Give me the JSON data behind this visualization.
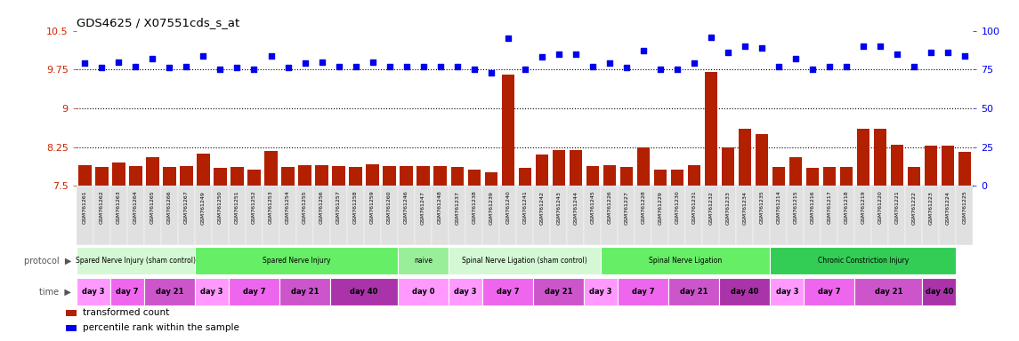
{
  "title": "GDS4625 / X07551cds_s_at",
  "samples": [
    "GSM761261",
    "GSM761262",
    "GSM761263",
    "GSM761264",
    "GSM761265",
    "GSM761266",
    "GSM761267",
    "GSM761249",
    "GSM761250",
    "GSM761251",
    "GSM761252",
    "GSM761253",
    "GSM761254",
    "GSM761255",
    "GSM761256",
    "GSM761257",
    "GSM761258",
    "GSM761259",
    "GSM761260",
    "GSM761246",
    "GSM761247",
    "GSM761248",
    "GSM761237",
    "GSM761238",
    "GSM761239",
    "GSM761240",
    "GSM761241",
    "GSM761242",
    "GSM761243",
    "GSM761244",
    "GSM761245",
    "GSM761226",
    "GSM761227",
    "GSM761228",
    "GSM761229",
    "GSM761230",
    "GSM761231",
    "GSM761232",
    "GSM761233",
    "GSM761234",
    "GSM761235",
    "GSM761214",
    "GSM761215",
    "GSM761216",
    "GSM761217",
    "GSM761218",
    "GSM761219",
    "GSM761220",
    "GSM761221",
    "GSM761222",
    "GSM761223",
    "GSM761224",
    "GSM761225"
  ],
  "bar_values": [
    7.9,
    7.87,
    7.95,
    7.88,
    8.05,
    7.86,
    7.88,
    8.12,
    7.85,
    7.86,
    7.82,
    8.18,
    7.86,
    7.9,
    7.9,
    7.88,
    7.87,
    7.92,
    7.88,
    7.88,
    7.88,
    7.88,
    7.87,
    7.82,
    7.77,
    9.65,
    7.84,
    8.1,
    8.2,
    8.2,
    7.88,
    7.9,
    7.86,
    8.25,
    7.82,
    7.82,
    7.9,
    9.7,
    8.25,
    8.6,
    8.5,
    7.87,
    8.05,
    7.85,
    7.87,
    7.87,
    8.6,
    8.6,
    8.3,
    7.87,
    8.27,
    8.28,
    8.15
  ],
  "dot_values": [
    79,
    76,
    80,
    77,
    82,
    76,
    77,
    84,
    75,
    76,
    75,
    84,
    76,
    79,
    80,
    77,
    77,
    80,
    77,
    77,
    77,
    77,
    77,
    75,
    73,
    95,
    75,
    83,
    85,
    85,
    77,
    79,
    76,
    87,
    75,
    75,
    79,
    96,
    86,
    90,
    89,
    77,
    82,
    75,
    77,
    77,
    90,
    90,
    85,
    77,
    86,
    86,
    84
  ],
  "bar_color": "#B22000",
  "dot_color": "#0000EE",
  "ylim_left": [
    7.5,
    10.5
  ],
  "ylim_right": [
    0,
    100
  ],
  "yticks_left": [
    7.5,
    8.25,
    9,
    9.75,
    10.5
  ],
  "ytick_labels_left": [
    "7.5",
    "8.25",
    "9",
    "9.75",
    "10.5"
  ],
  "yticks_right": [
    0,
    25,
    50,
    75,
    100
  ],
  "ytick_labels_right": [
    "0",
    "25",
    "50",
    "75",
    "100"
  ],
  "hlines": [
    8.25,
    9.0,
    9.75
  ],
  "protocol_groups": [
    {
      "label": "Spared Nerve Injury (sham control)",
      "start": 0,
      "end": 6,
      "color": "#d4f7d4"
    },
    {
      "label": "Spared Nerve Injury",
      "start": 7,
      "end": 18,
      "color": "#66ee66"
    },
    {
      "label": "naive",
      "start": 19,
      "end": 21,
      "color": "#99ee99"
    },
    {
      "label": "Spinal Nerve Ligation (sham control)",
      "start": 22,
      "end": 30,
      "color": "#d4f7d4"
    },
    {
      "label": "Spinal Nerve Ligation",
      "start": 31,
      "end": 40,
      "color": "#66ee66"
    },
    {
      "label": "Chronic Constriction Injury",
      "start": 41,
      "end": 51,
      "color": "#33cc55"
    }
  ],
  "time_groups": [
    {
      "label": "day 3",
      "start": 0,
      "end": 1,
      "color": "#ff99ff"
    },
    {
      "label": "day 7",
      "start": 2,
      "end": 3,
      "color": "#ee66ee"
    },
    {
      "label": "day 21",
      "start": 4,
      "end": 6,
      "color": "#cc55cc"
    },
    {
      "label": "day 3",
      "start": 7,
      "end": 8,
      "color": "#ff99ff"
    },
    {
      "label": "day 7",
      "start": 9,
      "end": 11,
      "color": "#ee66ee"
    },
    {
      "label": "day 21",
      "start": 12,
      "end": 14,
      "color": "#cc55cc"
    },
    {
      "label": "day 40",
      "start": 15,
      "end": 18,
      "color": "#aa33aa"
    },
    {
      "label": "day 0",
      "start": 19,
      "end": 21,
      "color": "#ff99ff"
    },
    {
      "label": "day 3",
      "start": 22,
      "end": 23,
      "color": "#ff99ff"
    },
    {
      "label": "day 7",
      "start": 24,
      "end": 26,
      "color": "#ee66ee"
    },
    {
      "label": "day 21",
      "start": 27,
      "end": 29,
      "color": "#cc55cc"
    },
    {
      "label": "day 3",
      "start": 30,
      "end": 31,
      "color": "#ff99ff"
    },
    {
      "label": "day 7",
      "start": 32,
      "end": 34,
      "color": "#ee66ee"
    },
    {
      "label": "day 21",
      "start": 35,
      "end": 37,
      "color": "#cc55cc"
    },
    {
      "label": "day 40",
      "start": 38,
      "end": 40,
      "color": "#aa33aa"
    },
    {
      "label": "day 3",
      "start": 41,
      "end": 42,
      "color": "#ff99ff"
    },
    {
      "label": "day 7",
      "start": 43,
      "end": 45,
      "color": "#ee66ee"
    },
    {
      "label": "day 21",
      "start": 46,
      "end": 49,
      "color": "#cc55cc"
    },
    {
      "label": "day 40",
      "start": 50,
      "end": 51,
      "color": "#aa33aa"
    }
  ],
  "legend_items": [
    {
      "label": "transformed count",
      "color": "#B22000"
    },
    {
      "label": "percentile rank within the sample",
      "color": "#0000EE"
    }
  ],
  "xtick_bg": "#e0e0e0"
}
